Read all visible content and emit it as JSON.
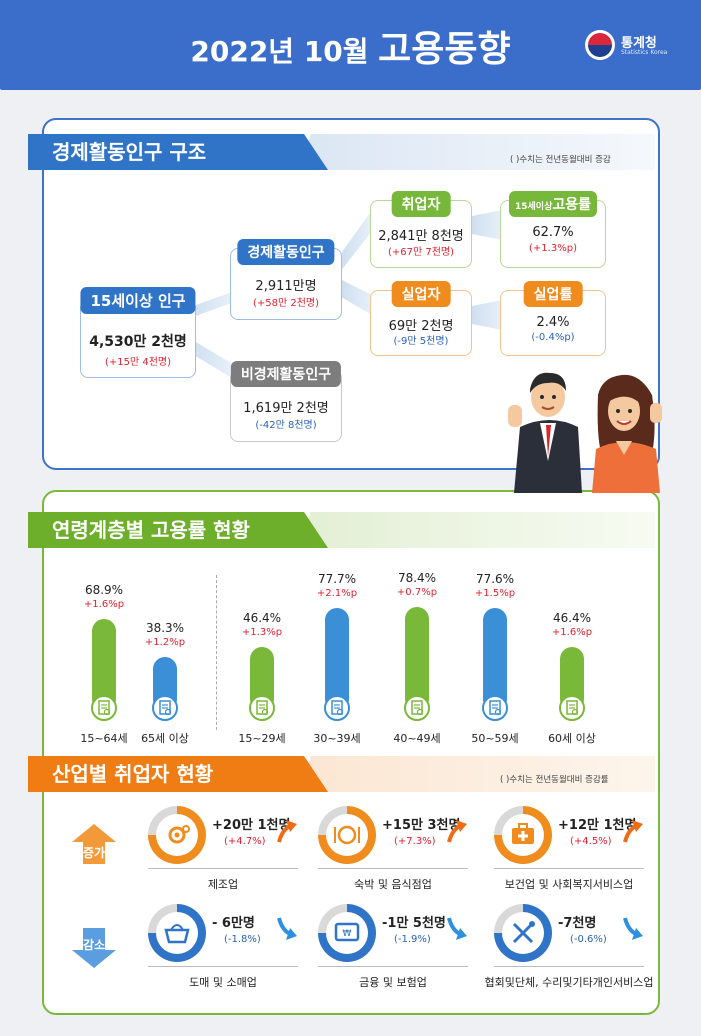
{
  "header": {
    "title_a": "2022년 10월",
    "title_b": "고용동향",
    "logo_name": "통계청",
    "logo_sub": "Statistics Korea"
  },
  "section1": {
    "title": "경제활동인구 구조",
    "note": "( )수치는 전년동월대비 증감",
    "pop15": {
      "label": "15세이상 인구",
      "value": "4,530만 2천명",
      "change": "(+15만 4천명)"
    },
    "econ_active": {
      "label": "경제활동인구",
      "value": "2,911만명",
      "change": "(+58만 2천명)"
    },
    "non_active": {
      "label": "비경제활동인구",
      "value": "1,619만 2천명",
      "change": "(-42만 8천명)"
    },
    "employed": {
      "label": "취업자",
      "value": "2,841만 8천명",
      "change": "(+67만 7천명)"
    },
    "unemployed": {
      "label": "실업자",
      "value": "69만 2천명",
      "change": "(-9만 5천명)"
    },
    "emp_rate": {
      "label_small": "15세이상",
      "label": "고용률",
      "value": "62.7%",
      "change": "(+1.3%p)"
    },
    "unemp_rate": {
      "label": "실업률",
      "value": "2.4%",
      "change": "(-0.4%p)"
    }
  },
  "section2": {
    "title": "연령계층별 고용률 현황"
  },
  "chart_data": {
    "type": "bar",
    "title": "연령계층별 고용률 현황",
    "categories": [
      "15~64세",
      "65세 이상",
      "15~29세",
      "30~39세",
      "40~49세",
      "50~59세",
      "60세 이상"
    ],
    "value_labels": [
      "68.9%",
      "38.3%",
      "46.4%",
      "77.7%",
      "78.4%",
      "77.6%",
      "46.4%"
    ],
    "change_labels": [
      "+1.6%p",
      "+1.2%p",
      "+1.3%p",
      "+2.1%p",
      "+0.7%p",
      "+1.5%p",
      "+1.6%p"
    ],
    "series": [
      {
        "values": [
          68.9,
          38.3,
          46.4,
          77.7,
          78.4,
          77.6,
          46.4
        ]
      }
    ],
    "bar_colors": [
      "#7ab83a",
      "#3a8fd6",
      "#7ab83a",
      "#3a8fd6",
      "#7ab83a",
      "#3a8fd6",
      "#7ab83a"
    ],
    "ylim": [
      0,
      100
    ]
  },
  "section3": {
    "title": "산업별 취업자 현황",
    "note": "( )수치는 전년동월대비 증감률",
    "increase_label": "증가",
    "decrease_label": "감소",
    "increase": [
      {
        "name": "제조업",
        "value": "+20만 1천명",
        "change": "(+4.7%)",
        "icon": "gear-icon"
      },
      {
        "name": "숙박 및 음식점업",
        "value": "+15만 3천명",
        "change": "(+7.3%)",
        "icon": "dining-icon"
      },
      {
        "name": "보건업 및 사회복지서비스업",
        "value": "+12만 1천명",
        "change": "(+4.5%)",
        "icon": "medical-kit-icon"
      }
    ],
    "decrease": [
      {
        "name": "도매 및 소매업",
        "value": "- 6만명",
        "change": "(-1.8%)",
        "icon": "basket-icon"
      },
      {
        "name": "금융 및 보험업",
        "value": "-1만 5천명",
        "change": "(-1.9%)",
        "icon": "atm-icon"
      },
      {
        "name": "협회및단체, 수리및기타개인서비스업",
        "value": "-7천명",
        "change": "(-0.6%)",
        "icon": "tools-icon"
      }
    ]
  }
}
